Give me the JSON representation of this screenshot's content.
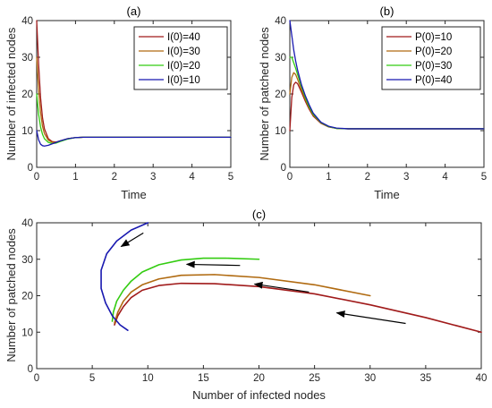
{
  "colors": {
    "red": "#a01a1a",
    "orange": "#b06a10",
    "green": "#33cc11",
    "blue": "#1818b0"
  },
  "chart_data": [
    {
      "type": "line",
      "title": "(a)",
      "xlabel": "Time",
      "ylabel": "Number of infected nodes",
      "xlim": [
        0,
        5
      ],
      "ylim": [
        0,
        40
      ],
      "xticks": [
        "0",
        "1",
        "2",
        "3",
        "4",
        "5"
      ],
      "yticks": [
        "0",
        "10",
        "20",
        "30",
        "40"
      ],
      "legend_position": "top-right",
      "series": [
        {
          "name": "I(0)=40",
          "color": "#a01a1a",
          "x": [
            0,
            0.05,
            0.1,
            0.15,
            0.2,
            0.3,
            0.4,
            0.5,
            0.6,
            0.8,
            1.0,
            1.2,
            1.5,
            2,
            3,
            4,
            5
          ],
          "y": [
            40,
            28,
            19,
            13.5,
            10.5,
            7.8,
            7.0,
            6.9,
            7.2,
            7.8,
            8.1,
            8.2,
            8.2,
            8.2,
            8.2,
            8.2,
            8.2
          ]
        },
        {
          "name": "I(0)=30",
          "color": "#b06a10",
          "x": [
            0,
            0.05,
            0.1,
            0.15,
            0.2,
            0.3,
            0.4,
            0.5,
            0.6,
            0.8,
            1.0,
            1.2,
            1.5,
            2,
            3,
            4,
            5
          ],
          "y": [
            30,
            21,
            15,
            11.2,
            9.2,
            7.4,
            6.8,
            6.8,
            7.1,
            7.8,
            8.1,
            8.2,
            8.2,
            8.2,
            8.2,
            8.2,
            8.2
          ]
        },
        {
          "name": "I(0)=20",
          "color": "#33cc11",
          "x": [
            0,
            0.05,
            0.1,
            0.15,
            0.2,
            0.3,
            0.4,
            0.5,
            0.6,
            0.8,
            1.0,
            1.2,
            1.5,
            2,
            3,
            4,
            5
          ],
          "y": [
            20,
            14.5,
            11,
            9,
            7.8,
            6.8,
            6.5,
            6.6,
            7.0,
            7.7,
            8.1,
            8.2,
            8.2,
            8.2,
            8.2,
            8.2,
            8.2
          ]
        },
        {
          "name": "I(0)=10",
          "color": "#1818b0",
          "x": [
            0,
            0.05,
            0.1,
            0.15,
            0.2,
            0.3,
            0.4,
            0.5,
            0.6,
            0.8,
            1.0,
            1.2,
            1.5,
            2,
            3,
            4,
            5
          ],
          "y": [
            10,
            7.5,
            6.3,
            5.9,
            5.8,
            6.0,
            6.4,
            6.8,
            7.2,
            7.8,
            8.1,
            8.2,
            8.2,
            8.2,
            8.2,
            8.2,
            8.2
          ]
        }
      ]
    },
    {
      "type": "line",
      "title": "(b)",
      "xlabel": "Time",
      "ylabel": "Number of patched nodes",
      "xlim": [
        0,
        5
      ],
      "ylim": [
        0,
        40
      ],
      "xticks": [
        "0",
        "1",
        "2",
        "3",
        "4",
        "5"
      ],
      "yticks": [
        "0",
        "10",
        "20",
        "30",
        "40"
      ],
      "legend_position": "top-right",
      "series": [
        {
          "name": "P(0)=10",
          "color": "#a01a1a",
          "x": [
            0,
            0.05,
            0.1,
            0.15,
            0.2,
            0.3,
            0.4,
            0.5,
            0.6,
            0.8,
            1.0,
            1.2,
            1.5,
            2,
            3,
            4,
            5
          ],
          "y": [
            10,
            19,
            22.5,
            23.2,
            22.8,
            20.5,
            18,
            15.8,
            14,
            12,
            11,
            10.6,
            10.5,
            10.5,
            10.5,
            10.5,
            10.5
          ]
        },
        {
          "name": "P(0)=20",
          "color": "#b06a10",
          "x": [
            0,
            0.05,
            0.1,
            0.15,
            0.2,
            0.3,
            0.4,
            0.5,
            0.6,
            0.8,
            1.0,
            1.2,
            1.5,
            2,
            3,
            4,
            5
          ],
          "y": [
            20,
            24.5,
            25.8,
            25.3,
            24,
            21.2,
            18.5,
            16.2,
            14.3,
            12.1,
            11.1,
            10.6,
            10.5,
            10.5,
            10.5,
            10.5,
            10.5
          ]
        },
        {
          "name": "P(0)=30",
          "color": "#33cc11",
          "x": [
            0,
            0.05,
            0.1,
            0.15,
            0.2,
            0.3,
            0.4,
            0.5,
            0.6,
            0.8,
            1.0,
            1.2,
            1.5,
            2,
            3,
            4,
            5
          ],
          "y": [
            30,
            30,
            28.5,
            27,
            25.3,
            22,
            19,
            16.5,
            14.5,
            12.2,
            11.1,
            10.6,
            10.5,
            10.5,
            10.5,
            10.5,
            10.5
          ]
        },
        {
          "name": "P(0)=40",
          "color": "#1818b0",
          "x": [
            0,
            0.05,
            0.1,
            0.15,
            0.2,
            0.3,
            0.4,
            0.5,
            0.6,
            0.8,
            1.0,
            1.2,
            1.5,
            2,
            3,
            4,
            5
          ],
          "y": [
            40,
            36,
            32,
            29,
            26.5,
            22.5,
            19.5,
            17,
            14.8,
            12.3,
            11.2,
            10.7,
            10.5,
            10.5,
            10.5,
            10.5,
            10.5
          ]
        }
      ]
    },
    {
      "type": "line",
      "title": "(c)",
      "xlabel": "Number of infected nodes",
      "ylabel": "Number of patched nodes",
      "xlim": [
        0,
        40
      ],
      "ylim": [
        0,
        40
      ],
      "xticks": [
        "0",
        "5",
        "10",
        "15",
        "20",
        "25",
        "30",
        "35",
        "40"
      ],
      "yticks": [
        "0",
        "10",
        "20",
        "30",
        "40"
      ],
      "series": [
        {
          "color": "#a01a1a",
          "x": [
            40,
            35,
            30,
            25,
            20,
            16,
            13,
            11,
            9.5,
            8.5,
            7.8,
            7.3,
            7.0
          ],
          "y": [
            10,
            14,
            17.5,
            20.5,
            22.5,
            23.3,
            23.4,
            22.8,
            21.5,
            19.5,
            17,
            14.5,
            12
          ]
        },
        {
          "color": "#b06a10",
          "x": [
            30,
            25,
            20,
            16,
            13,
            11,
            9.5,
            8.5,
            7.8,
            7.3,
            7.0
          ],
          "y": [
            20,
            23,
            25,
            25.8,
            25.6,
            24.6,
            23,
            21,
            18.5,
            15.5,
            12.5
          ]
        },
        {
          "color": "#33cc11",
          "x": [
            20,
            17,
            15,
            13,
            11,
            9.5,
            8.5,
            7.8,
            7.2,
            6.9,
            6.8
          ],
          "y": [
            30,
            30.3,
            30.3,
            29.8,
            28.5,
            26.5,
            24,
            21.5,
            18.5,
            15.5,
            13
          ]
        },
        {
          "color": "#1818b0",
          "x": [
            10,
            8.5,
            7.2,
            6.3,
            5.8,
            5.8,
            6.2,
            6.8,
            7.5,
            8.2
          ],
          "y": [
            40,
            38,
            35,
            31.5,
            27,
            22,
            18,
            14.5,
            12,
            10.5
          ]
        }
      ],
      "arrows": [
        {
          "from": [
            9.6,
            37.2
          ],
          "to": [
            7.6,
            33.5
          ]
        },
        {
          "from": [
            18.3,
            28.3
          ],
          "to": [
            13.5,
            28.6
          ]
        },
        {
          "from": [
            24.5,
            21.0
          ],
          "to": [
            19.6,
            23.2
          ]
        },
        {
          "from": [
            33.2,
            12.4
          ],
          "to": [
            27.0,
            15.3
          ]
        }
      ]
    }
  ]
}
